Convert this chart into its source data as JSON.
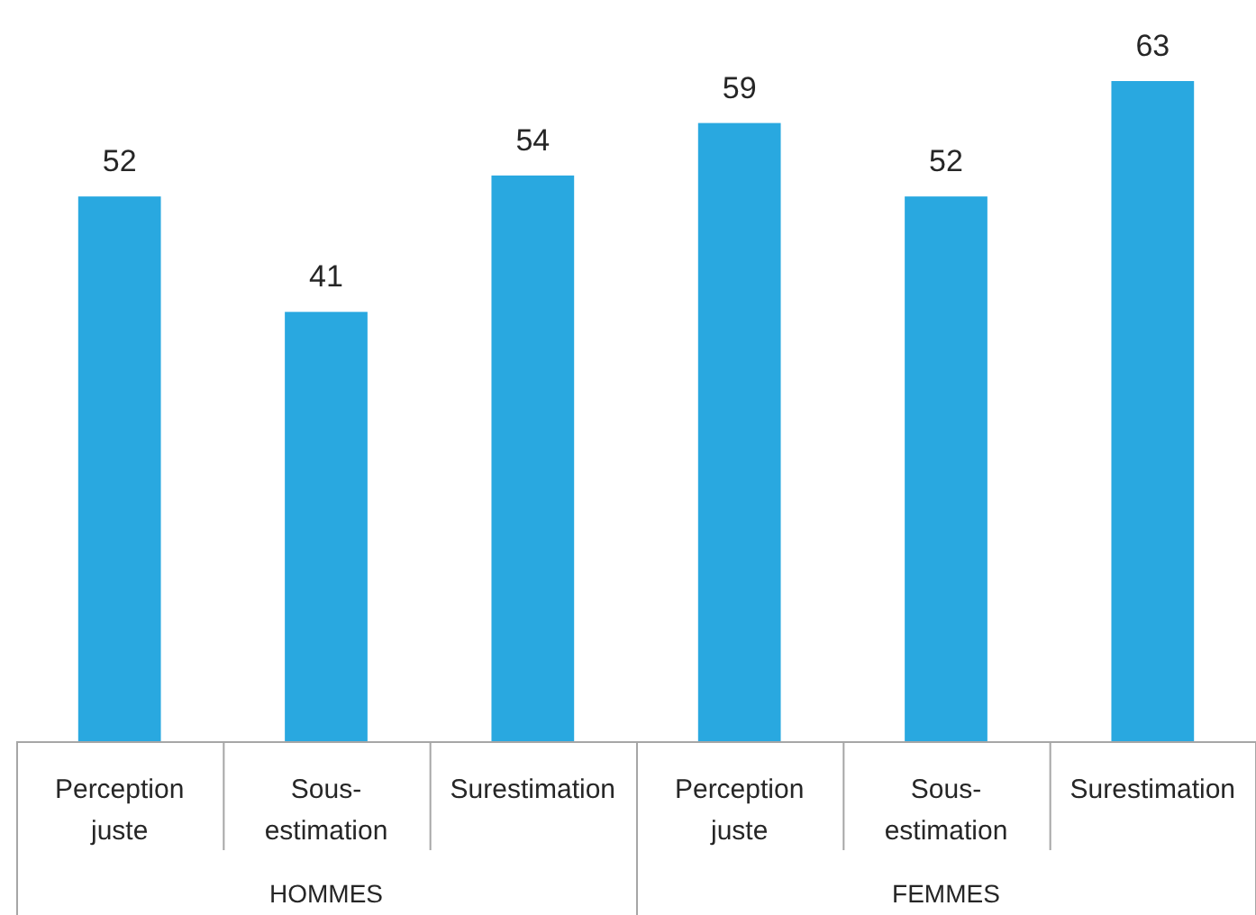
{
  "chart_data": {
    "type": "bar",
    "categories": [
      "Perception juste",
      "Sous-estimation",
      "Surestimation",
      "Perception juste",
      "Sous-estimation",
      "Surestimation"
    ],
    "values": [
      52,
      41,
      54,
      59,
      52,
      63
    ],
    "color": "#29a8e0",
    "data_labels": true,
    "annotations": [
      "HOMMES",
      "FEMMES"
    ]
  }
}
